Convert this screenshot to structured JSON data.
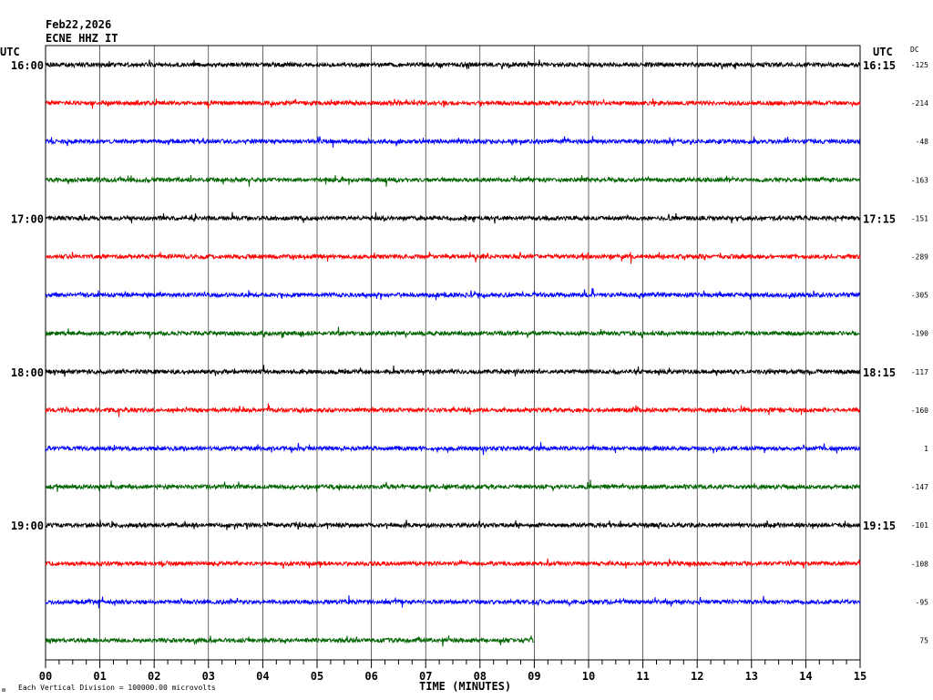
{
  "header": {
    "date": "Feb22,2026",
    "station": "ECNE HHZ IT",
    "utc_left": "UTC",
    "utc_right": "UTC",
    "dc_label": "DC"
  },
  "footer": {
    "scale_note": "Each Vertical Division = 100000.00 microvolts",
    "corner_mark": "ʍ"
  },
  "chart_data": {
    "type": "line",
    "title": "ECNE HHZ IT",
    "date": "Feb22,2026",
    "xlabel": "TIME (MINUTES)",
    "x_ticks": [
      "00",
      "01",
      "02",
      "03",
      "04",
      "05",
      "06",
      "07",
      "08",
      "09",
      "10",
      "11",
      "12",
      "13",
      "14",
      "15"
    ],
    "xlim": [
      0,
      15
    ],
    "minutes_per_line": 15,
    "trace_colors": [
      "#000000",
      "#ff0000",
      "#0000ff",
      "#006400"
    ],
    "grid": true,
    "lines": [
      {
        "left": "16:00",
        "right": "16:15",
        "dc": "-125",
        "end_min": 15
      },
      {
        "left": "",
        "right": "",
        "dc": "-214",
        "end_min": 15
      },
      {
        "left": "",
        "right": "",
        "dc": "-48",
        "end_min": 15
      },
      {
        "left": "",
        "right": "",
        "dc": "-163",
        "end_min": 15
      },
      {
        "left": "17:00",
        "right": "17:15",
        "dc": "-151",
        "end_min": 15
      },
      {
        "left": "",
        "right": "",
        "dc": "-289",
        "end_min": 15
      },
      {
        "left": "",
        "right": "",
        "dc": "-305",
        "end_min": 15
      },
      {
        "left": "",
        "right": "",
        "dc": "-190",
        "end_min": 15
      },
      {
        "left": "18:00",
        "right": "18:15",
        "dc": "-117",
        "end_min": 15
      },
      {
        "left": "",
        "right": "",
        "dc": "-160",
        "end_min": 15
      },
      {
        "left": "",
        "right": "",
        "dc": "1",
        "end_min": 15
      },
      {
        "left": "",
        "right": "",
        "dc": "-147",
        "end_min": 15
      },
      {
        "left": "19:00",
        "right": "19:15",
        "dc": "-101",
        "end_min": 15
      },
      {
        "left": "",
        "right": "",
        "dc": "-108",
        "end_min": 15
      },
      {
        "left": "",
        "right": "",
        "dc": "-95",
        "end_min": 15
      },
      {
        "left": "",
        "right": "",
        "dc": "75",
        "end_min": 9
      }
    ]
  }
}
